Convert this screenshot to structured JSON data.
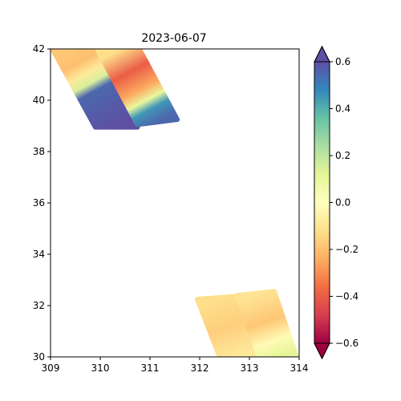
{
  "chart_data": {
    "type": "heatmap",
    "title": "2023-06-07",
    "xlabel": "",
    "ylabel": "",
    "xlim": [
      309,
      314
    ],
    "ylim": [
      30,
      42
    ],
    "xticks": [
      309,
      310,
      311,
      312,
      313,
      314
    ],
    "yticks": [
      30,
      32,
      34,
      36,
      38,
      40,
      42
    ],
    "grid": false,
    "colorbar": {
      "colormap": "Spectral",
      "vmin": -0.6,
      "vmax": 0.6,
      "ticks": [
        -0.6,
        -0.4,
        -0.2,
        0.0,
        0.2,
        0.4,
        0.6
      ],
      "tick_labels": [
        "−0.6",
        "−0.4",
        "−0.2",
        "0.0",
        "0.2",
        "0.4",
        "0.6"
      ],
      "extend": "both"
    },
    "swaths": [
      {
        "corners": [
          [
            309.05,
            41.95
          ],
          [
            309.9,
            41.95
          ],
          [
            310.75,
            38.95
          ],
          [
            309.9,
            38.95
          ]
        ],
        "stops": [
          {
            "t": 0.0,
            "value": -0.18
          },
          {
            "t": 0.15,
            "value": -0.2
          },
          {
            "t": 0.3,
            "value": -0.08
          },
          {
            "t": 0.42,
            "value": 0.15
          },
          {
            "t": 0.52,
            "value": 0.55
          },
          {
            "t": 1.0,
            "value": 0.6
          }
        ]
      },
      {
        "corners": [
          [
            309.95,
            41.95
          ],
          [
            310.8,
            41.95
          ],
          [
            311.55,
            39.25
          ],
          [
            310.75,
            39.05
          ]
        ],
        "stops": [
          {
            "t": 0.0,
            "value": -0.12
          },
          {
            "t": 0.3,
            "value": -0.4
          },
          {
            "t": 0.55,
            "value": -0.25
          },
          {
            "t": 0.7,
            "value": 0.1
          },
          {
            "t": 0.82,
            "value": 0.45
          },
          {
            "t": 1.0,
            "value": 0.55
          }
        ]
      },
      {
        "corners": [
          [
            311.95,
            32.25
          ],
          [
            312.7,
            32.35
          ],
          [
            313.2,
            30.0
          ],
          [
            312.4,
            30.0
          ]
        ],
        "stops": [
          {
            "t": 0.0,
            "value": -0.12
          },
          {
            "t": 0.5,
            "value": -0.16
          },
          {
            "t": 1.0,
            "value": -0.08
          }
        ]
      },
      {
        "corners": [
          [
            312.75,
            32.4
          ],
          [
            313.5,
            32.55
          ],
          [
            313.95,
            30.0
          ],
          [
            313.2,
            30.0
          ]
        ],
        "stops": [
          {
            "t": 0.0,
            "value": -0.1
          },
          {
            "t": 0.45,
            "value": -0.18
          },
          {
            "t": 0.75,
            "value": -0.02
          },
          {
            "t": 1.0,
            "value": 0.12
          }
        ]
      }
    ]
  }
}
